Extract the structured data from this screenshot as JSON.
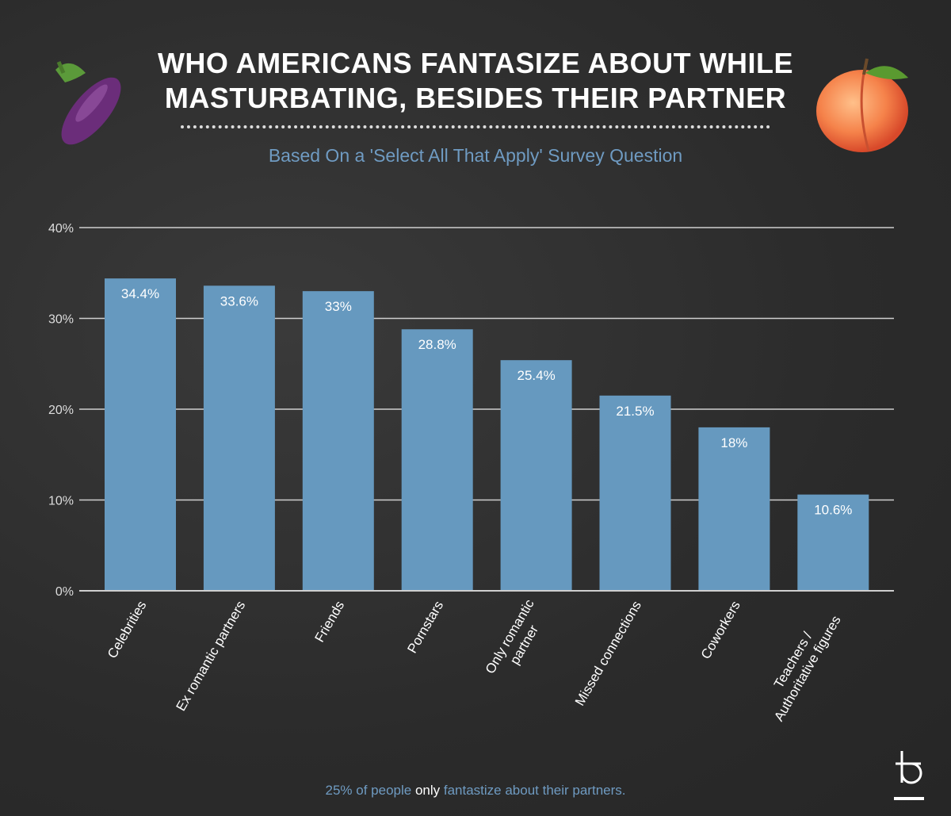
{
  "title_line1": "WHO AMERICANS FANTASIZE ABOUT WHILE",
  "title_line2": "MASTURBATING, BESIDES THEIR PARTNER",
  "subtitle": "Based On a 'Select All That Apply' Survey Question",
  "footnote": {
    "part1": "25% of people ",
    "part2": "only",
    "part3": " fantastize about their partners."
  },
  "icons": {
    "left": "eggplant-emoji",
    "right": "peach-emoji",
    "logo": "brand-logo"
  },
  "colors": {
    "bar": "#6699bf",
    "background": "#2d2d2d",
    "accent": "#6f9bc2"
  },
  "chart_data": {
    "type": "bar",
    "categories": [
      "Celebrities",
      "Ex romantic partners",
      "Friends",
      "Pornstars",
      "Only romantic partner",
      "Missed connections",
      "Coworkers",
      "Teachers / Authoritative figures"
    ],
    "category_lines": [
      [
        "Celebrities"
      ],
      [
        "Ex romantic partners"
      ],
      [
        "Friends"
      ],
      [
        "Pornstars"
      ],
      [
        "Only romantic",
        "partner"
      ],
      [
        "Missed connections"
      ],
      [
        "Coworkers"
      ],
      [
        "Teachers /",
        "Authoritative figures"
      ]
    ],
    "values": [
      34.4,
      33.6,
      33,
      28.8,
      25.4,
      21.5,
      18,
      10.6
    ],
    "data_labels": [
      "34.4%",
      "33.6%",
      "33%",
      "28.8%",
      "25.4%",
      "21.5%",
      "18%",
      "10.6%"
    ],
    "yticks": [
      0,
      10,
      20,
      30,
      40
    ],
    "ytick_labels": [
      "0%",
      "10%",
      "20%",
      "30%",
      "40%"
    ],
    "ylim": [
      0,
      40
    ],
    "grid": true,
    "xlabel": "",
    "ylabel": ""
  }
}
